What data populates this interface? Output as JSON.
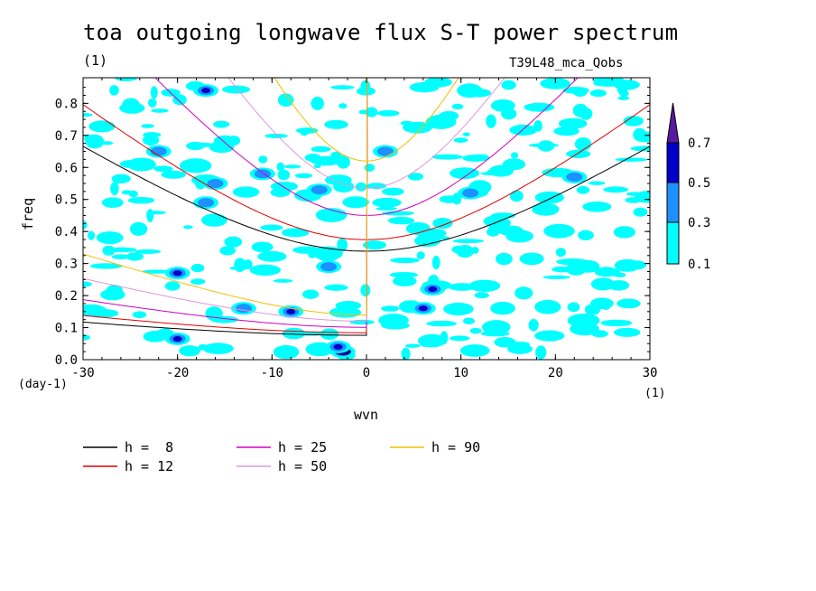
{
  "title": "toa outgoing longwave flux S-T power spectrum",
  "subtitle": "(1)",
  "case_label": "T39L48_mca_Qobs",
  "chart_data": {
    "type": "heatmap",
    "xlabel": "wvn",
    "ylabel": "freq",
    "x_unit": "(day-1)",
    "x_unit_right": "(1)",
    "xlim": [
      -30,
      30
    ],
    "ylim": [
      0,
      0.88
    ],
    "xticks": [
      -30,
      -20,
      -10,
      0,
      10,
      20,
      30
    ],
    "xtick_labels": [
      "-30",
      "-20",
      "-10",
      "0",
      "10",
      "20",
      "30"
    ],
    "yticks": [
      0,
      0.1,
      0.2,
      0.3,
      0.4,
      0.5,
      0.6,
      0.7,
      0.8
    ],
    "ytick_labels": [
      "0.0",
      "0.1",
      "0.2",
      "0.3",
      "0.4",
      "0.5",
      "0.6",
      "0.7",
      "0.8"
    ],
    "colorbar": {
      "levels": [
        "0.1",
        "0.3",
        "0.5",
        "0.7"
      ],
      "colors": [
        "#00ffff",
        "#1e90ff",
        "#0000c8",
        "#5a1aa0"
      ]
    },
    "patches": [
      {
        "x": -2.5,
        "y": 0.025,
        "v": 0.8
      },
      {
        "x": -3,
        "y": 0.04,
        "v": 0.5
      },
      {
        "x": -20,
        "y": 0.065,
        "v": 0.6
      },
      {
        "x": -8,
        "y": 0.15,
        "v": 0.5
      },
      {
        "x": -13,
        "y": 0.16,
        "v": 0.4
      },
      {
        "x": 6,
        "y": 0.16,
        "v": 0.5
      },
      {
        "x": 7,
        "y": 0.22,
        "v": 0.5
      },
      {
        "x": -20,
        "y": 0.27,
        "v": 0.5
      },
      {
        "x": -4,
        "y": 0.29,
        "v": 0.4
      },
      {
        "x": -17,
        "y": 0.84,
        "v": 0.5
      },
      {
        "x": -22,
        "y": 0.65,
        "v": 0.4
      },
      {
        "x": -16,
        "y": 0.55,
        "v": 0.4
      },
      {
        "x": -11,
        "y": 0.58,
        "v": 0.4
      },
      {
        "x": -17,
        "y": 0.49,
        "v": 0.4
      },
      {
        "x": 2,
        "y": 0.65,
        "v": 0.4
      },
      {
        "x": -5,
        "y": 0.53,
        "v": 0.4
      },
      {
        "x": 11,
        "y": 0.52,
        "v": 0.3
      },
      {
        "x": 22,
        "y": 0.57,
        "v": 0.3
      }
    ],
    "dispersion_curves": [
      {
        "name": "h =  8",
        "h": 8,
        "color": "#000000"
      },
      {
        "name": "h = 12",
        "h": 12,
        "color": "#e00000"
      },
      {
        "name": "h = 25",
        "h": 25,
        "color": "#d000c0"
      },
      {
        "name": "h = 50",
        "h": 50,
        "color": "#dd99dd"
      },
      {
        "name": "h = 90",
        "h": 90,
        "color": "#f0c000"
      }
    ],
    "legend_position": "bottom-left"
  }
}
